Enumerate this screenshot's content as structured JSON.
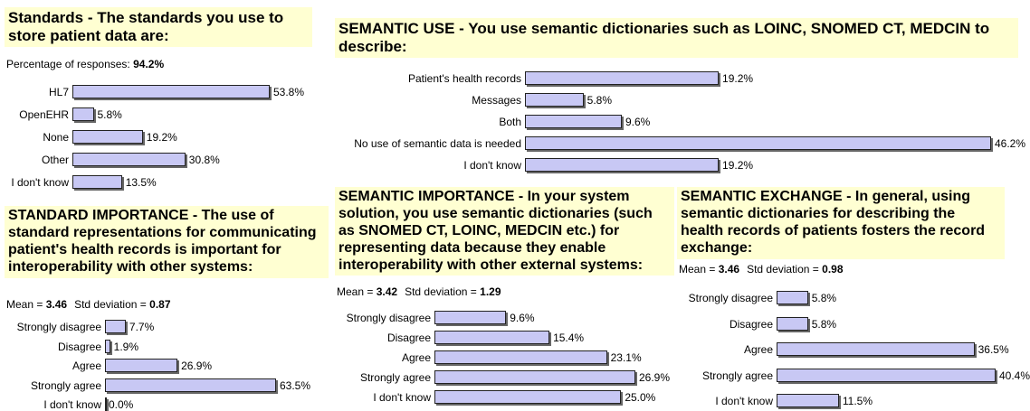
{
  "chart_data": [
    {
      "type": "bar",
      "title": "Standards - The standards you use to store patient data are:",
      "stats": [
        {
          "label": "Percentage of responses:",
          "value": "94.2%"
        }
      ],
      "categories": [
        "HL7",
        "OpenEHR",
        "None",
        "Other",
        "I don't know"
      ],
      "values": [
        53.8,
        5.8,
        19.2,
        30.8,
        13.5
      ],
      "value_labels": [
        "53.8%",
        "5.8%",
        "19.2%",
        "30.8%",
        "13.5%"
      ],
      "color": "#c8c8f4"
    },
    {
      "type": "bar",
      "title": "STANDARD IMPORTANCE - The use of standard representations for communicating patient's health records is important for interoperability with other systems:",
      "stats": [
        {
          "label": "Mean =",
          "value": 3.46
        },
        {
          "label": "Std deviation =",
          "value": 0.87
        }
      ],
      "categories": [
        "Strongly disagree",
        "Disagree",
        "Agree",
        "Strongly agree",
        "I don't know"
      ],
      "values": [
        7.7,
        1.9,
        26.9,
        63.5,
        0.0
      ],
      "value_labels": [
        "7.7%",
        "1.9%",
        "26.9%",
        "63.5%",
        "0.0%"
      ],
      "color": "#c8c8f4"
    },
    {
      "type": "bar",
      "title": "SEMANTIC USE - You use semantic dictionaries such as LOINC, SNOMED CT, MEDCIN to describe:",
      "categories": [
        "Patient's health records",
        "Messages",
        "Both",
        "No use of semantic data is needed",
        "I don't know"
      ],
      "values": [
        19.2,
        5.8,
        9.6,
        46.2,
        19.2
      ],
      "value_labels": [
        "19.2%",
        "5.8%",
        "9.6%",
        "46.2%",
        "19.2%"
      ],
      "color": "#c8c8f4"
    },
    {
      "type": "bar",
      "title": "SEMANTIC IMPORTANCE - In your system solution, you use semantic dictionaries (such as SNOMED CT, LOINC, MEDCIN etc.) for representing data because they enable interoperability with other external systems:",
      "stats": [
        {
          "label": "Mean =",
          "value": 3.42
        },
        {
          "label": "Std deviation =",
          "value": 1.29
        }
      ],
      "categories": [
        "Strongly disagree",
        "Disagree",
        "Agree",
        "Strongly agree",
        "I don't know"
      ],
      "values": [
        9.6,
        15.4,
        23.1,
        26.9,
        25.0
      ],
      "value_labels": [
        "9.6%",
        "15.4%",
        "23.1%",
        "26.9%",
        "25.0%"
      ],
      "color": "#c8c8f4"
    },
    {
      "type": "bar",
      "title": "SEMANTIC EXCHANGE - In general, using semantic dictionaries for describing the health records of patients fosters the record exchange:",
      "stats": [
        {
          "label": "Mean =",
          "value": 3.46
        },
        {
          "label": "Std deviation =",
          "value": 0.98
        }
      ],
      "categories": [
        "Strongly disagree",
        "Disagree",
        "Agree",
        "Strongly agree",
        "I don't know"
      ],
      "values": [
        5.8,
        5.8,
        36.5,
        40.4,
        11.5
      ],
      "value_labels": [
        "5.8%",
        "5.8%",
        "36.5%",
        "40.4%",
        "11.5%"
      ],
      "color": "#c8c8f4"
    }
  ]
}
